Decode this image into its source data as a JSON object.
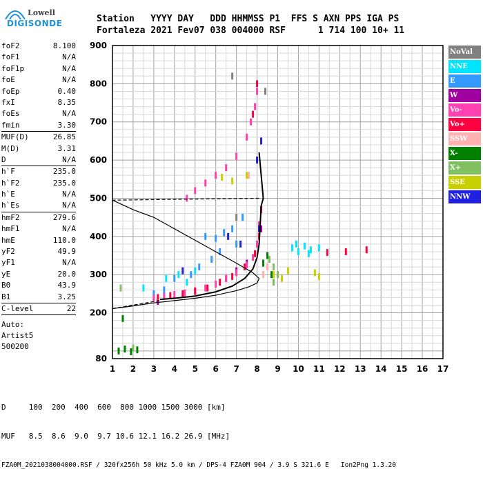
{
  "logo": {
    "line1": "Lowell",
    "line2": "DIGISONDE"
  },
  "header": {
    "line1": "Station   YYYY DAY   DDD HHMMSS P1  FFS S AXN PPS IGA PS",
    "line2": "Fortaleza 2021 Fev07 038 004000 RSF      1 714 100 10+ 11"
  },
  "params": [
    [
      {
        "k": "foF2",
        "v": "8.100"
      },
      {
        "k": "foF1",
        "v": "N/A"
      },
      {
        "k": "foF1p",
        "v": "N/A"
      },
      {
        "k": "foE",
        "v": "N/A"
      },
      {
        "k": "foEp",
        "v": "0.40"
      },
      {
        "k": "fxI",
        "v": "8.35"
      },
      {
        "k": "foEs",
        "v": "N/A"
      },
      {
        "k": "fmin",
        "v": "3.30"
      }
    ],
    [
      {
        "k": "MUF(D)",
        "v": "26.85"
      },
      {
        "k": "M(D)",
        "v": "3.31"
      },
      {
        "k": "D",
        "v": "N/A"
      }
    ],
    [
      {
        "k": "h`F",
        "v": "235.0"
      },
      {
        "k": "h`F2",
        "v": "235.0"
      },
      {
        "k": "h`E",
        "v": "N/A"
      },
      {
        "k": "h`Es",
        "v": "N/A"
      }
    ],
    [
      {
        "k": "hmF2",
        "v": "279.6"
      },
      {
        "k": "hmF1",
        "v": "N/A"
      },
      {
        "k": "hmE",
        "v": "110.0"
      },
      {
        "k": "yF2",
        "v": "49.9"
      },
      {
        "k": "yF1",
        "v": "N/A"
      },
      {
        "k": "yE",
        "v": "20.0"
      },
      {
        "k": "B0",
        "v": "43.9"
      },
      {
        "k": "B1",
        "v": "3.25"
      }
    ],
    [
      {
        "k": "C-level",
        "v": "22"
      }
    ]
  ],
  "auto": {
    "l1": "Auto:",
    "l2": "Artist5",
    "l3": "500200"
  },
  "legend": [
    {
      "label": "NoVal",
      "color": "#808080"
    },
    {
      "label": "NNE",
      "color": "#00e5ff"
    },
    {
      "label": "E",
      "color": "#3399ff"
    },
    {
      "label": "W",
      "color": "#a000a0"
    },
    {
      "label": "Vo-",
      "color": "#ff40b0"
    },
    {
      "label": "Vo+",
      "color": "#ff0040"
    },
    {
      "label": "SSW",
      "color": "#ffb0b0"
    },
    {
      "label": "X-",
      "color": "#008000"
    },
    {
      "label": "X+",
      "color": "#80c060"
    },
    {
      "label": "SSE",
      "color": "#c8d000"
    },
    {
      "label": "NNW",
      "color": "#2020e0"
    }
  ],
  "chart_data": {
    "type": "scatter",
    "title": "",
    "xlabel": "",
    "ylabel": "",
    "xlim": [
      1,
      17
    ],
    "ylim": [
      80,
      900
    ],
    "x_ticks": [
      1,
      2,
      3,
      4,
      5,
      6,
      7,
      8,
      9,
      10,
      11,
      12,
      13,
      14,
      15,
      16,
      17
    ],
    "y_ticks": [
      80,
      200,
      300,
      400,
      500,
      600,
      700,
      800,
      900
    ],
    "grid": true,
    "series": [
      {
        "name": "NoVal",
        "color": "#808080",
        "points": [
          [
            6.8,
            820
          ],
          [
            7.0,
            450
          ],
          [
            8.4,
            780
          ]
        ]
      },
      {
        "name": "NNE",
        "color": "#00e5ff",
        "points": [
          [
            9.7,
            370
          ],
          [
            10.0,
            360
          ],
          [
            10.3,
            375
          ],
          [
            10.6,
            365
          ],
          [
            11.0,
            370
          ],
          [
            10.5,
            355
          ],
          [
            9.9,
            380
          ],
          [
            4.2,
            300
          ],
          [
            5.0,
            310
          ],
          [
            4.6,
            280
          ],
          [
            3.6,
            290
          ],
          [
            2.5,
            265
          ]
        ]
      },
      {
        "name": "E",
        "color": "#3399ff",
        "points": [
          [
            5.5,
            400
          ],
          [
            6.0,
            395
          ],
          [
            6.4,
            410
          ],
          [
            4.0,
            290
          ],
          [
            3.5,
            260
          ],
          [
            4.8,
            300
          ],
          [
            5.2,
            320
          ],
          [
            6.8,
            420
          ],
          [
            7.0,
            380
          ],
          [
            7.3,
            450
          ],
          [
            3.0,
            250
          ],
          [
            5.8,
            340
          ],
          [
            6.2,
            360
          ]
        ]
      },
      {
        "name": "W",
        "color": "#a000a0",
        "points": [
          [
            6.5,
            290
          ],
          [
            7.0,
            310
          ],
          [
            7.5,
            330
          ],
          [
            8.0,
            380
          ],
          [
            8.2,
            420
          ],
          [
            3.2,
            230
          ]
        ]
      },
      {
        "name": "Vo-",
        "color": "#ff40b0",
        "points": [
          [
            3.0,
            238
          ],
          [
            3.5,
            243
          ],
          [
            4.0,
            248
          ],
          [
            4.5,
            252
          ],
          [
            5.0,
            258
          ],
          [
            5.5,
            265
          ],
          [
            6.0,
            275
          ],
          [
            6.5,
            290
          ],
          [
            7.0,
            305
          ],
          [
            7.5,
            325
          ],
          [
            7.8,
            345
          ],
          [
            8.0,
            380
          ],
          [
            8.1,
            430
          ],
          [
            8.0,
            780
          ],
          [
            7.9,
            740
          ],
          [
            7.7,
            700
          ],
          [
            7.5,
            660
          ],
          [
            7.0,
            610
          ],
          [
            6.5,
            580
          ],
          [
            6.0,
            560
          ],
          [
            5.5,
            540
          ],
          [
            5.0,
            520
          ],
          [
            4.6,
            500
          ]
        ]
      },
      {
        "name": "Vo+",
        "color": "#ff0040",
        "points": [
          [
            3.2,
            240
          ],
          [
            3.8,
            245
          ],
          [
            4.4,
            250
          ],
          [
            5.0,
            256
          ],
          [
            5.6,
            265
          ],
          [
            6.2,
            280
          ],
          [
            6.8,
            295
          ],
          [
            7.4,
            320
          ],
          [
            7.9,
            355
          ],
          [
            8.1,
            400
          ],
          [
            8.2,
            470
          ],
          [
            12.3,
            360
          ],
          [
            13.3,
            365
          ],
          [
            11.4,
            358
          ],
          [
            8.0,
            800
          ],
          [
            7.8,
            720
          ]
        ]
      },
      {
        "name": "SSW",
        "color": "#ffb0b0",
        "points": [
          [
            8.3,
            300
          ],
          [
            8.5,
            320
          ],
          [
            7.6,
            560
          ]
        ]
      },
      {
        "name": "X-",
        "color": "#008000",
        "points": [
          [
            1.3,
            100
          ],
          [
            1.6,
            105
          ],
          [
            1.9,
            98
          ],
          [
            2.2,
            103
          ],
          [
            1.5,
            185
          ],
          [
            8.3,
            330
          ],
          [
            8.5,
            350
          ],
          [
            8.7,
            300
          ]
        ]
      },
      {
        "name": "X+",
        "color": "#80c060",
        "points": [
          [
            8.6,
            340
          ],
          [
            8.8,
            320
          ],
          [
            9.0,
            300
          ],
          [
            8.8,
            280
          ],
          [
            1.4,
            265
          ],
          [
            2.0,
            108
          ]
        ]
      },
      {
        "name": "SSE",
        "color": "#c8d000",
        "points": [
          [
            8.8,
            300
          ],
          [
            9.2,
            290
          ],
          [
            9.5,
            310
          ],
          [
            10.8,
            305
          ],
          [
            11.0,
            295
          ],
          [
            7.5,
            560
          ],
          [
            6.8,
            545
          ],
          [
            6.3,
            555
          ]
        ]
      },
      {
        "name": "NNW",
        "color": "#2020e0",
        "points": [
          [
            6.6,
            400
          ],
          [
            7.2,
            380
          ],
          [
            8.1,
            420
          ],
          [
            8.2,
            650
          ],
          [
            8.0,
            600
          ],
          [
            4.4,
            310
          ]
        ]
      }
    ],
    "virtual_height_trace": {
      "color": "#000",
      "points": [
        [
          3.3,
          235
        ],
        [
          4.0,
          238
        ],
        [
          5.0,
          244
        ],
        [
          6.0,
          255
        ],
        [
          6.8,
          270
        ],
        [
          7.4,
          290
        ],
        [
          7.8,
          315
        ],
        [
          8.0,
          345
        ],
        [
          8.1,
          380
        ],
        [
          8.15,
          430
        ],
        [
          8.2,
          480
        ],
        [
          8.3,
          500
        ],
        [
          8.2,
          560
        ],
        [
          8.1,
          620
        ]
      ]
    },
    "true_height_profile": {
      "color": "#000",
      "points": [
        [
          1.0,
          211
        ],
        [
          2.0,
          218
        ],
        [
          3.0,
          226
        ],
        [
          4.0,
          232
        ],
        [
          5.0,
          238
        ],
        [
          6.0,
          246
        ],
        [
          7.0,
          258
        ],
        [
          7.6,
          268
        ],
        [
          8.0,
          278
        ],
        [
          8.1,
          290
        ],
        [
          7.8,
          305
        ],
        [
          7.0,
          330
        ],
        [
          6.0,
          360
        ],
        [
          5.0,
          390
        ],
        [
          4.0,
          420
        ],
        [
          3.0,
          450
        ],
        [
          2.0,
          470
        ],
        [
          1.0,
          495
        ]
      ]
    },
    "dashed_segments": [
      [
        [
          1.0,
          211
        ],
        [
          3.3,
          232
        ]
      ],
      [
        [
          8.1,
          500
        ],
        [
          1.0,
          495
        ]
      ]
    ]
  },
  "footer": {
    "d_line": "D     100  200  400  600  800 1000 1500 3000 [km]",
    "muf_line": "MUF   8.5  8.6  9.0  9.7 10.6 12.1 16.2 26.9 [MHz]",
    "info_line": "FZA0M_2021038004000.RSF / 320fx256h 50 kHz 5.0 km / DPS-4 FZA0M 904 / 3.9 S 321.6 E   Ion2Png 1.3.20"
  }
}
